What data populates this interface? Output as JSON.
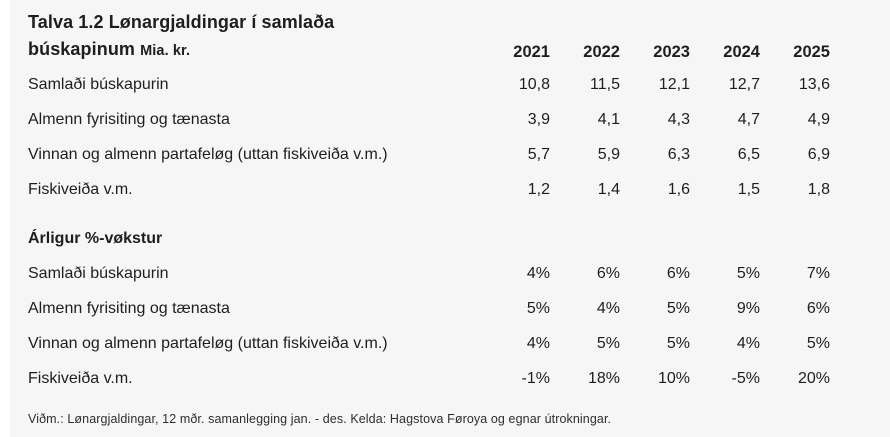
{
  "page": {
    "title_line1": "Talva 1.2 Lønargjaldingar í samlaða",
    "title_line2": "búskapinum",
    "unit": "Mia. kr.",
    "footnote": "Viðm.: Lønargjaldingar, 12 mðr. samanlegging jan. - des. Kelda: Hagstova Føroya og egnar útrokningar."
  },
  "colors": {
    "background": "#f5f6f5",
    "text": "#1e1e1e",
    "footnote_text": "#2e2e2e",
    "page_edge": "#ffffff"
  },
  "table": {
    "years": [
      "2021",
      "2022",
      "2023",
      "2024",
      "2025"
    ],
    "sections": [
      {
        "header": "",
        "rows": [
          {
            "label": "Samlaði búskapurin",
            "values": [
              "10,8",
              "11,5",
              "12,1",
              "12,7",
              "13,6"
            ]
          },
          {
            "label": "Almenn fyrisiting og tænasta",
            "values": [
              "3,9",
              "4,1",
              "4,3",
              "4,7",
              "4,9"
            ]
          },
          {
            "label": "Vinnan og almenn partafeløg (uttan fiskiveiða v.m.)",
            "values": [
              "5,7",
              "5,9",
              "6,3",
              "6,5",
              "6,9"
            ]
          },
          {
            "label": "Fiskiveiða v.m.",
            "values": [
              "1,2",
              "1,4",
              "1,6",
              "1,5",
              "1,8"
            ]
          }
        ]
      },
      {
        "header": "Árligur %-vøkstur",
        "rows": [
          {
            "label": "Samlaði búskapurin",
            "values": [
              "4%",
              "6%",
              "6%",
              "5%",
              "7%"
            ]
          },
          {
            "label": "Almenn fyrisiting og tænasta",
            "values": [
              "5%",
              "4%",
              "5%",
              "9%",
              "6%"
            ]
          },
          {
            "label": "Vinnan og almenn partafeløg (uttan fiskiveiða v.m.)",
            "values": [
              "4%",
              "5%",
              "5%",
              "4%",
              "5%"
            ]
          },
          {
            "label": "Fiskiveiða v.m.",
            "values": [
              "-1%",
              "18%",
              "10%",
              "-5%",
              "20%"
            ]
          }
        ]
      }
    ]
  }
}
